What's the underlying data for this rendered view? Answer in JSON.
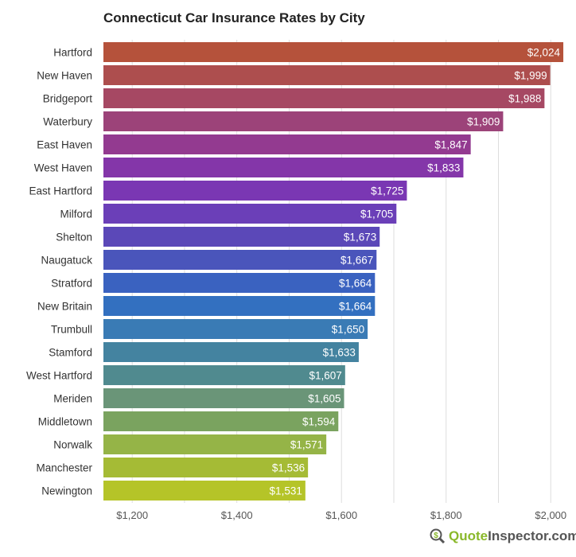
{
  "chart_data": {
    "type": "bar",
    "orientation": "horizontal",
    "title": "Connecticut Car Insurance Rates by City",
    "categories": [
      "Hartford",
      "New Haven",
      "Bridgeport",
      "Waterbury",
      "East Haven",
      "West Haven",
      "East Hartford",
      "Milford",
      "Shelton",
      "Naugatuck",
      "Stratford",
      "New Britain",
      "Trumbull",
      "Stamford",
      "West Hartford",
      "Meriden",
      "Middletown",
      "Norwalk",
      "Manchester",
      "Newington"
    ],
    "values": [
      2024,
      1999,
      1988,
      1909,
      1847,
      1833,
      1725,
      1705,
      1673,
      1667,
      1664,
      1664,
      1650,
      1633,
      1607,
      1605,
      1594,
      1571,
      1536,
      1531
    ],
    "data_labels": [
      "$2,024",
      "$1,999",
      "$1,988",
      "$1,909",
      "$1,847",
      "$1,833",
      "$1,725",
      "$1,705",
      "$1,673",
      "$1,667",
      "$1,664",
      "$1,664",
      "$1,650",
      "$1,633",
      "$1,607",
      "$1,605",
      "$1,594",
      "$1,571",
      "$1,536",
      "$1,531"
    ],
    "colors": [
      "#b5523b",
      "#ad4e4e",
      "#a64863",
      "#9c4379",
      "#933a90",
      "#8436a9",
      "#7a37b3",
      "#6b3fb8",
      "#5b48b8",
      "#4a55bb",
      "#3a62c0",
      "#3370c0",
      "#3a7bb5",
      "#4483a0",
      "#508a8f",
      "#6a9578",
      "#7aa35f",
      "#95b447",
      "#a5bb35",
      "#b5c428"
    ],
    "xlim": [
      1145,
      2030
    ],
    "x_ticks": [
      1200,
      1400,
      1600,
      1800,
      2000
    ],
    "x_tick_labels": [
      "$1,200",
      "$1,400",
      "$1,600",
      "$1,800",
      "$2,000"
    ],
    "grid": true,
    "xlabel": "",
    "ylabel": ""
  },
  "logo": {
    "part1": "Quote",
    "part2": "Inspector.com"
  }
}
